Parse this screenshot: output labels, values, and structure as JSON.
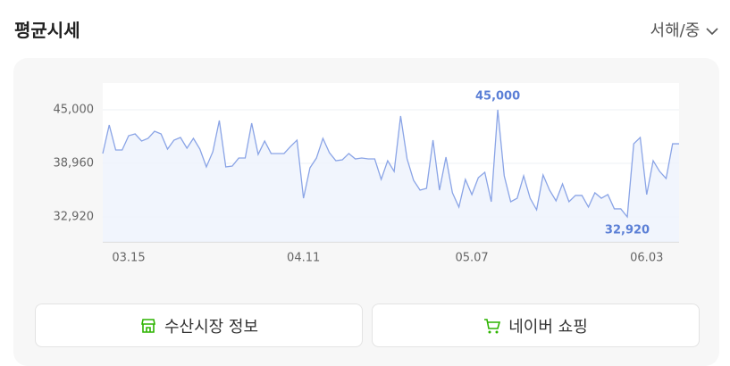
{
  "header": {
    "title": "평균시세",
    "selector": "서해/중"
  },
  "chart_data": {
    "type": "line",
    "categories": [
      null,
      null,
      null,
      null,
      "03.15",
      null,
      null,
      null,
      null,
      null,
      null,
      null,
      null,
      null,
      null,
      null,
      null,
      null,
      null,
      null,
      null,
      null,
      null,
      null,
      null,
      null,
      null,
      null,
      null,
      null,
      null,
      "04.11",
      null,
      null,
      null,
      null,
      null,
      null,
      null,
      null,
      null,
      null,
      null,
      null,
      null,
      null,
      null,
      null,
      null,
      null,
      null,
      null,
      null,
      null,
      null,
      null,
      null,
      "05.07",
      null,
      null,
      null,
      null,
      null,
      null,
      null,
      null,
      null,
      null,
      null,
      null,
      null,
      null,
      null,
      null,
      null,
      null,
      null,
      null,
      null,
      null,
      null,
      null,
      null,
      null,
      "06.03",
      null,
      null,
      null,
      null,
      null
    ],
    "series": [
      {
        "name": "평균시세",
        "color": "#8aa4e6",
        "values": [
          40070,
          43290,
          40470,
          40470,
          42080,
          42280,
          41480,
          41780,
          42580,
          42280,
          40570,
          41580,
          41880,
          40670,
          41780,
          40570,
          38560,
          40270,
          43790,
          38560,
          38660,
          39560,
          39560,
          43490,
          39970,
          41480,
          40070,
          40070,
          40070,
          40870,
          41580,
          35030,
          38460,
          39560,
          41780,
          40170,
          39260,
          39360,
          40070,
          39460,
          39560,
          39460,
          39460,
          37150,
          39260,
          38050,
          44300,
          39460,
          37050,
          35940,
          36140,
          41580,
          35940,
          39660,
          35640,
          34030,
          37150,
          35440,
          37350,
          37950,
          34630,
          45000,
          37550,
          34630,
          35030,
          37550,
          35030,
          33720,
          37650,
          35940,
          34730,
          36640,
          34630,
          35340,
          35340,
          34030,
          35640,
          35030,
          35440,
          33830,
          33830,
          32920,
          41170,
          41880,
          35440,
          39260,
          38050,
          37250,
          41170,
          41170
        ],
        "value_labels": [
          null,
          null,
          null,
          null,
          null,
          null,
          null,
          null,
          null,
          null,
          null,
          null,
          null,
          null,
          null,
          null,
          null,
          null,
          null,
          null,
          null,
          null,
          null,
          null,
          null,
          null,
          null,
          null,
          null,
          null,
          null,
          null,
          null,
          null,
          null,
          null,
          null,
          null,
          null,
          null,
          null,
          null,
          null,
          null,
          null,
          null,
          null,
          null,
          null,
          null,
          null,
          null,
          null,
          null,
          null,
          null,
          null,
          null,
          null,
          null,
          null,
          "45,000",
          null,
          null,
          null,
          null,
          null,
          null,
          null,
          null,
          null,
          null,
          null,
          null,
          null,
          null,
          null,
          null,
          null,
          null,
          null,
          "32,920",
          null,
          null,
          null,
          null,
          null,
          null,
          null,
          null
        ]
      }
    ],
    "ylim": [
      30100,
      48020
    ],
    "yticks": [
      {
        "value": 32920,
        "label": "32,920"
      },
      {
        "value": 38960,
        "label": "38,960"
      },
      {
        "value": 45000,
        "label": "45,000"
      }
    ],
    "grid": true
  },
  "buttons": [
    {
      "label": "수산시장 정보"
    },
    {
      "label": "네이버 쇼핑"
    }
  ]
}
